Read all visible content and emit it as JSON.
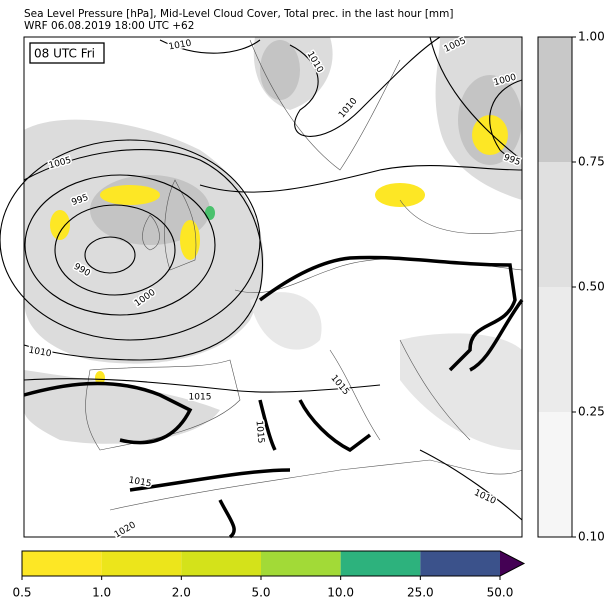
{
  "header": {
    "title": "Sea Level Pressure [hPa], Mid-Level Cloud Cover, Total prec. in the last hour [mm]",
    "subtitle": "WRF 06.08.2019 18:00 UTC +62"
  },
  "map": {
    "time_label": "08 UTC Fri",
    "isobar_labels": [
      "1010",
      "1010",
      "1005",
      "1000",
      "1010",
      "1005",
      "995",
      "995",
      "990",
      "1000",
      "1010",
      "1015",
      "1015",
      "1015",
      "1015",
      "1010",
      "1020"
    ]
  },
  "cloud_colorbar": {
    "ticks": [
      {
        "value": 0.1,
        "label": "0.10"
      },
      0.25,
      {
        "value": 0.5,
        "label": "0.50"
      },
      0.75,
      {
        "value": 1,
        "label": "1.00"
      }
    ],
    "colors": [
      "#f6f6f6",
      "#ebebeb",
      "#e0e0e0",
      "#c8c8c8"
    ]
  },
  "precip_colorbar": {
    "ticks": [
      0.5,
      {
        "value": 1,
        "label": "1.0"
      },
      {
        "value": 2,
        "label": "2.0"
      },
      {
        "value": 5,
        "label": "5.0"
      },
      {
        "value": 10,
        "label": "10.0"
      },
      {
        "value": 25,
        "label": "25.0"
      },
      {
        "value": 50,
        "label": "50.0"
      }
    ],
    "colors": [
      "#fde725",
      "#ece51b",
      "#d4e21a",
      "#a2da37",
      "#2db27d",
      "#3b528b"
    ],
    "extend_color": "#440154"
  }
}
